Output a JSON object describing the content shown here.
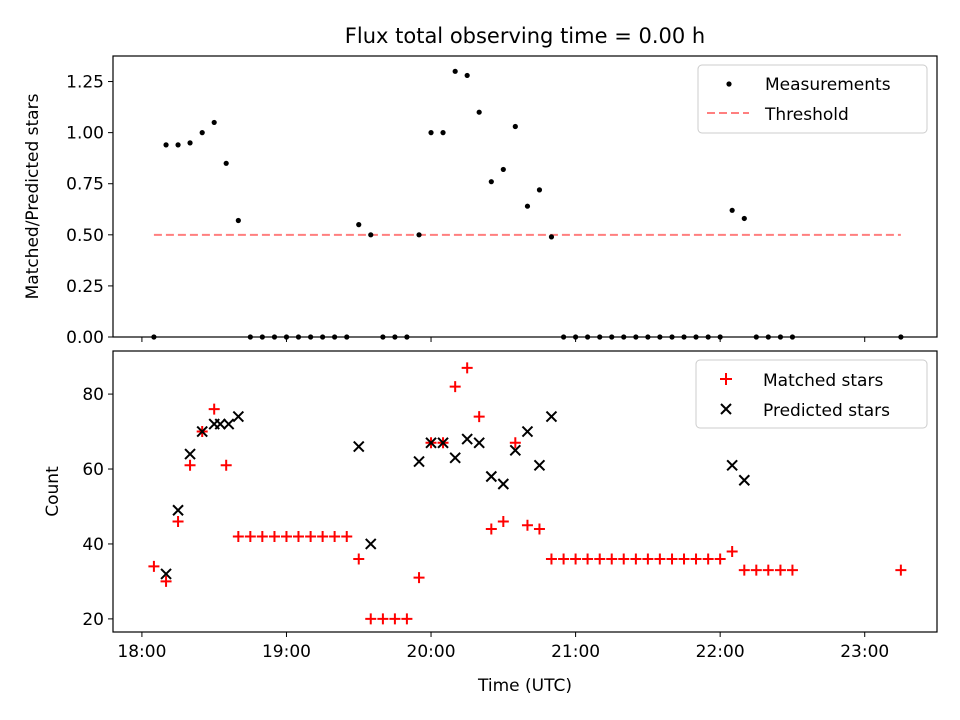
{
  "title": "Flux total observing time = 0.00 h",
  "chart_data": [
    {
      "type": "scatter",
      "ylabel": "Matched/Predicted stars",
      "xlim": [
        17.8,
        23.5
      ],
      "ylim": [
        0,
        1.375
      ],
      "yticks": [
        "0.00",
        "0.25",
        "0.50",
        "0.75",
        "1.00",
        "1.25"
      ],
      "ytick_values": [
        0,
        0.25,
        0.5,
        0.75,
        1.0,
        1.25
      ],
      "legend": {
        "position": "top-right",
        "entries": [
          "Measurements",
          "Threshold"
        ]
      },
      "series": [
        {
          "name": "Measurements",
          "marker": "dot",
          "color": "#000000",
          "points": [
            [
              18.083,
              0.0
            ],
            [
              18.167,
              0.94
            ],
            [
              18.25,
              0.94
            ],
            [
              18.333,
              0.95
            ],
            [
              18.417,
              1.0
            ],
            [
              18.5,
              1.05
            ],
            [
              18.583,
              0.85
            ],
            [
              18.667,
              0.57
            ],
            [
              18.75,
              0.0
            ],
            [
              18.833,
              0.0
            ],
            [
              18.917,
              0.0
            ],
            [
              19.0,
              0.0
            ],
            [
              19.083,
              0.0
            ],
            [
              19.167,
              0.0
            ],
            [
              19.25,
              0.0
            ],
            [
              19.333,
              0.0
            ],
            [
              19.417,
              0.0
            ],
            [
              19.5,
              0.55
            ],
            [
              19.583,
              0.5
            ],
            [
              19.667,
              0.0
            ],
            [
              19.75,
              0.0
            ],
            [
              19.833,
              0.0
            ],
            [
              19.917,
              0.5
            ],
            [
              20.0,
              1.0
            ],
            [
              20.083,
              1.0
            ],
            [
              20.167,
              1.3
            ],
            [
              20.25,
              1.28
            ],
            [
              20.333,
              1.1
            ],
            [
              20.417,
              0.76
            ],
            [
              20.5,
              0.82
            ],
            [
              20.583,
              1.03
            ],
            [
              20.667,
              0.64
            ],
            [
              20.75,
              0.72
            ],
            [
              20.833,
              0.49
            ],
            [
              20.917,
              0.0
            ],
            [
              21.0,
              0.0
            ],
            [
              21.083,
              0.0
            ],
            [
              21.167,
              0.0
            ],
            [
              21.25,
              0.0
            ],
            [
              21.333,
              0.0
            ],
            [
              21.417,
              0.0
            ],
            [
              21.5,
              0.0
            ],
            [
              21.583,
              0.0
            ],
            [
              21.667,
              0.0
            ],
            [
              21.75,
              0.0
            ],
            [
              21.833,
              0.0
            ],
            [
              21.917,
              0.0
            ],
            [
              22.0,
              0.0
            ],
            [
              22.083,
              0.62
            ],
            [
              22.167,
              0.58
            ],
            [
              22.25,
              0.0
            ],
            [
              22.333,
              0.0
            ],
            [
              22.417,
              0.0
            ],
            [
              22.5,
              0.0
            ],
            [
              23.25,
              0.0
            ]
          ]
        },
        {
          "name": "Threshold",
          "marker": "dashed-line",
          "color": "#ff7f7f",
          "points": [
            [
              18.083,
              0.5
            ],
            [
              23.25,
              0.5
            ]
          ]
        }
      ]
    },
    {
      "type": "scatter",
      "xlabel": "Time (UTC)",
      "ylabel": "Count",
      "xlim": [
        17.8,
        23.5
      ],
      "ylim": [
        16.5,
        91.5
      ],
      "xticks": [
        "18:00",
        "19:00",
        "20:00",
        "21:00",
        "22:00",
        "23:00"
      ],
      "xtick_values": [
        18,
        19,
        20,
        21,
        22,
        23
      ],
      "yticks": [
        "20",
        "40",
        "60",
        "80"
      ],
      "ytick_values": [
        20,
        40,
        60,
        80
      ],
      "legend": {
        "position": "top-right",
        "entries": [
          "Matched stars",
          "Predicted stars"
        ]
      },
      "series": [
        {
          "name": "Matched stars",
          "marker": "plus",
          "color": "#ff0000",
          "points": [
            [
              18.083,
              34
            ],
            [
              18.167,
              30
            ],
            [
              18.25,
              46
            ],
            [
              18.333,
              61
            ],
            [
              18.417,
              70
            ],
            [
              18.5,
              76
            ],
            [
              18.583,
              61
            ],
            [
              18.667,
              42
            ],
            [
              18.75,
              42
            ],
            [
              18.833,
              42
            ],
            [
              18.917,
              42
            ],
            [
              19.0,
              42
            ],
            [
              19.083,
              42
            ],
            [
              19.167,
              42
            ],
            [
              19.25,
              42
            ],
            [
              19.333,
              42
            ],
            [
              19.417,
              42
            ],
            [
              19.5,
              36
            ],
            [
              19.583,
              20
            ],
            [
              19.667,
              20
            ],
            [
              19.75,
              20
            ],
            [
              19.833,
              20
            ],
            [
              19.917,
              31
            ],
            [
              20.0,
              67
            ],
            [
              20.083,
              67
            ],
            [
              20.167,
              82
            ],
            [
              20.25,
              87
            ],
            [
              20.333,
              74
            ],
            [
              20.417,
              44
            ],
            [
              20.5,
              46
            ],
            [
              20.583,
              67
            ],
            [
              20.667,
              45
            ],
            [
              20.75,
              44
            ],
            [
              20.833,
              36
            ],
            [
              20.917,
              36
            ],
            [
              21.0,
              36
            ],
            [
              21.083,
              36
            ],
            [
              21.167,
              36
            ],
            [
              21.25,
              36
            ],
            [
              21.333,
              36
            ],
            [
              21.417,
              36
            ],
            [
              21.5,
              36
            ],
            [
              21.583,
              36
            ],
            [
              21.667,
              36
            ],
            [
              21.75,
              36
            ],
            [
              21.833,
              36
            ],
            [
              21.917,
              36
            ],
            [
              22.0,
              36
            ],
            [
              22.083,
              38
            ],
            [
              22.167,
              33
            ],
            [
              22.25,
              33
            ],
            [
              22.333,
              33
            ],
            [
              22.417,
              33
            ],
            [
              22.5,
              33
            ],
            [
              23.25,
              33
            ]
          ]
        },
        {
          "name": "Predicted stars",
          "marker": "x",
          "color": "#000000",
          "points": [
            [
              18.167,
              32
            ],
            [
              18.25,
              49
            ],
            [
              18.333,
              64
            ],
            [
              18.417,
              70
            ],
            [
              18.5,
              72
            ],
            [
              18.542,
              72
            ],
            [
              18.6,
              72
            ],
            [
              18.667,
              74
            ],
            [
              19.5,
              66
            ],
            [
              19.583,
              40
            ],
            [
              19.917,
              62
            ],
            [
              20.0,
              67
            ],
            [
              20.083,
              67
            ],
            [
              20.167,
              63
            ],
            [
              20.25,
              68
            ],
            [
              20.333,
              67
            ],
            [
              20.417,
              58
            ],
            [
              20.5,
              56
            ],
            [
              20.583,
              65
            ],
            [
              20.667,
              70
            ],
            [
              20.75,
              61
            ],
            [
              20.833,
              74
            ],
            [
              22.083,
              61
            ],
            [
              22.167,
              57
            ]
          ]
        }
      ]
    }
  ]
}
